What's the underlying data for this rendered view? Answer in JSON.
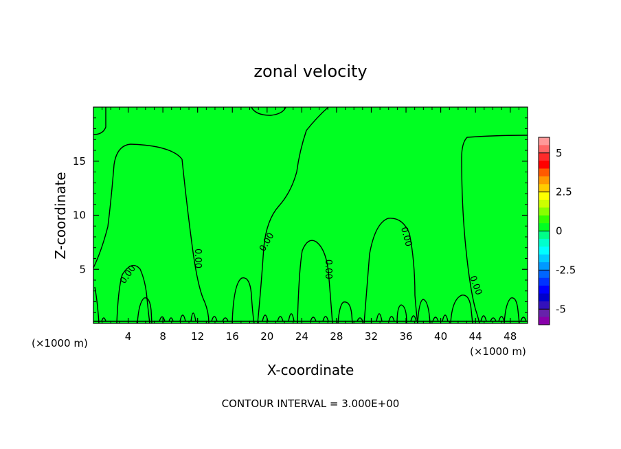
{
  "chart_data": {
    "type": "heatmap",
    "subtype": "filled-contour",
    "title": "zonal velocity",
    "xlabel": "X-coordinate",
    "ylabel": "Z-coordinate",
    "x_unit": "(×1000 m)",
    "footer": "CONTOUR INTERVAL = 3.000E+00",
    "xlim": [
      0,
      50
    ],
    "ylim": [
      0,
      20
    ],
    "x_ticks": [
      4,
      8,
      12,
      16,
      20,
      24,
      28,
      32,
      36,
      40,
      44,
      48
    ],
    "y_ticks": [
      5,
      10,
      15
    ],
    "contour_interval": 3.0,
    "background_color": "#00ff22",
    "zero_contour_label": "0.00",
    "zero_contour_label_positions": [
      [
        4,
        4.5
      ],
      [
        12,
        6
      ],
      [
        20,
        7.5
      ],
      [
        27,
        5
      ],
      [
        36,
        8
      ],
      [
        44,
        3.5
      ]
    ],
    "colorbar": {
      "range": [
        -6,
        6
      ],
      "tick_labels": [
        "5",
        "2.5",
        "0",
        "-2.5",
        "-5"
      ],
      "tick_values": [
        5,
        2.5,
        0,
        -2.5,
        -5
      ],
      "colors_top_to_bottom": [
        "#ff9999",
        "#ff6666",
        "#ff2a2a",
        "#ff0000",
        "#ff5a00",
        "#ff9900",
        "#ffcc00",
        "#ffff00",
        "#ccff00",
        "#88ff00",
        "#33ff00",
        "#00ff22",
        "#00ff88",
        "#00ffcc",
        "#00ffff",
        "#00ccff",
        "#0099ff",
        "#0066ff",
        "#0033ff",
        "#0000ff",
        "#0000cc",
        "#3311bb",
        "#6622aa",
        "#8800aa"
      ]
    }
  }
}
